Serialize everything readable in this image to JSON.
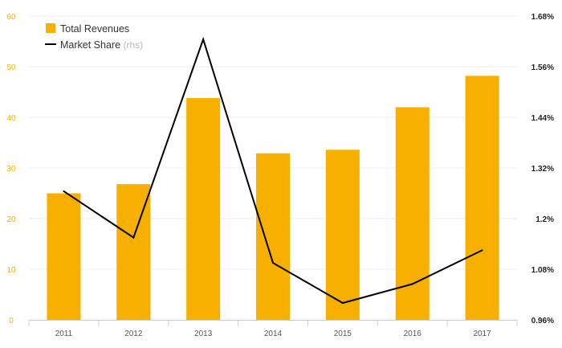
{
  "chart_data": {
    "type": "bar",
    "categories": [
      "2011",
      "2012",
      "2013",
      "2014",
      "2015",
      "2016",
      "2017"
    ],
    "series": [
      {
        "name": "Total Revenues",
        "type": "bar",
        "axis": "left",
        "color": "#f8b000",
        "values": [
          25.0,
          26.8,
          43.8,
          32.9,
          33.6,
          42.0,
          48.2
        ]
      },
      {
        "name": "Market Share",
        "type": "line",
        "axis": "right",
        "color": "#000000",
        "values": [
          1.265,
          1.155,
          1.625,
          1.095,
          1.0,
          1.045,
          1.125
        ]
      }
    ],
    "legend": {
      "placement": "top-left",
      "items": [
        {
          "label": "Total Revenues",
          "suffix": ""
        },
        {
          "label": "Market Share",
          "suffix": "(rhs)"
        }
      ]
    },
    "y_left": {
      "ylim": [
        0,
        60
      ],
      "ticks": [
        "0",
        "10",
        "20",
        "30",
        "40",
        "50",
        "60"
      ],
      "color": "#f2b000"
    },
    "y_right": {
      "ylim": [
        0.96,
        1.68
      ],
      "tick_values": [
        0.96,
        1.08,
        1.2,
        1.32,
        1.44,
        1.56,
        1.68
      ],
      "ticks": [
        "0.96%",
        "1.08%",
        "1.2%",
        "1.32%",
        "1.44%",
        "1.56%",
        "1.68%"
      ]
    },
    "grid": true
  }
}
